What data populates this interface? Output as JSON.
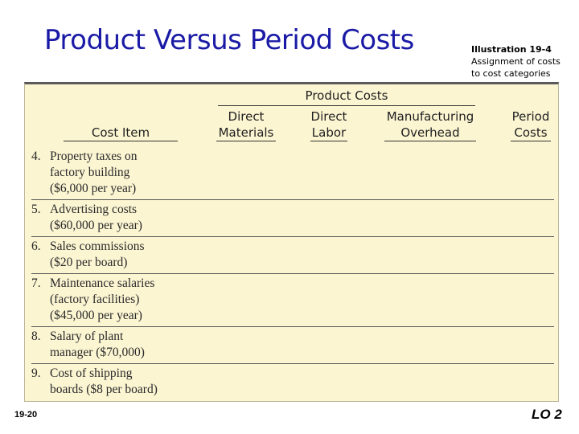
{
  "slide": {
    "title": "Product Versus Period Costs",
    "illustration_number": "Illustration 19-4",
    "illustration_caption_line1": "Assignment of costs",
    "illustration_caption_line2": "to cost categories",
    "page_number": "19-20",
    "learning_objective": "LO 2"
  },
  "table": {
    "group_header": "Product Costs",
    "columns": {
      "cost_item": "Cost Item",
      "direct_materials_1": "Direct",
      "direct_materials_2": "Materials",
      "direct_labor_1": "Direct",
      "direct_labor_2": "Labor",
      "mfg_overhead_1": "Manufacturing",
      "mfg_overhead_2": "Overhead",
      "period_costs_1": "Period",
      "period_costs_2": "Costs"
    },
    "rows": [
      {
        "num": "4.",
        "lines": [
          "Property taxes on",
          "factory building",
          "($6,000 per year)"
        ]
      },
      {
        "num": "5.",
        "lines": [
          "Advertising costs",
          "($60,000 per year)"
        ]
      },
      {
        "num": "6.",
        "lines": [
          "Sales commissions",
          "($20 per board)"
        ]
      },
      {
        "num": "7.",
        "lines": [
          "Maintenance salaries",
          "(factory facilities)",
          "($45,000 per year)"
        ]
      },
      {
        "num": "8.",
        "lines": [
          "Salary of plant",
          "manager ($70,000)"
        ]
      },
      {
        "num": "9.",
        "lines": [
          "Cost of shipping",
          "boards ($8 per board)"
        ]
      }
    ]
  }
}
